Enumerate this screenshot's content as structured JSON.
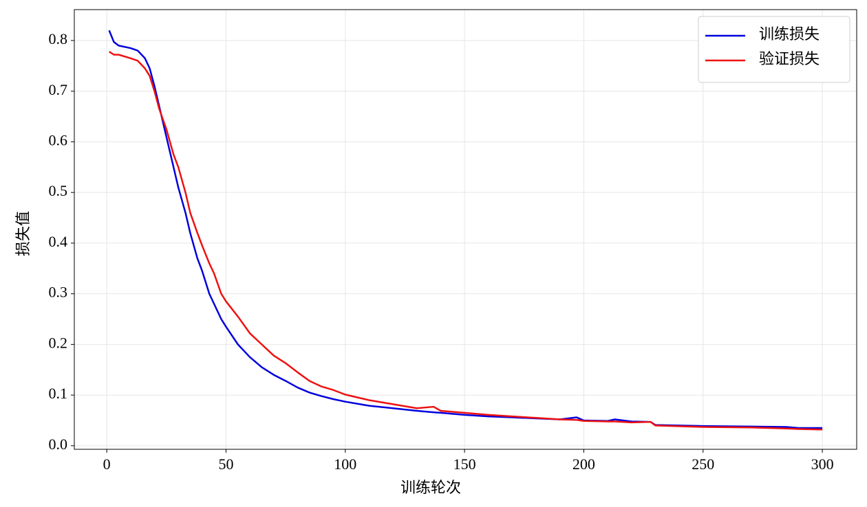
{
  "chart_data": {
    "type": "line",
    "xlabel": "训练轮次",
    "ylabel": "损失值",
    "x": [
      1,
      3,
      5,
      10,
      13,
      16,
      18,
      20,
      22,
      25,
      28,
      30,
      33,
      35,
      38,
      40,
      43,
      45,
      48,
      50,
      55,
      60,
      65,
      70,
      75,
      80,
      85,
      90,
      95,
      100,
      110,
      120,
      130,
      137,
      140,
      150,
      160,
      170,
      180,
      190,
      197,
      200,
      210,
      213,
      220,
      228,
      230,
      250,
      270,
      285,
      290,
      300
    ],
    "series": [
      {
        "name": "训练损失",
        "color": "#0000dd",
        "values": [
          0.82,
          0.797,
          0.79,
          0.785,
          0.78,
          0.765,
          0.745,
          0.71,
          0.67,
          0.61,
          0.55,
          0.51,
          0.46,
          0.42,
          0.37,
          0.345,
          0.3,
          0.28,
          0.25,
          0.235,
          0.2,
          0.175,
          0.155,
          0.14,
          0.128,
          0.115,
          0.105,
          0.098,
          0.092,
          0.087,
          0.079,
          0.074,
          0.069,
          0.066,
          0.065,
          0.061,
          0.058,
          0.056,
          0.054,
          0.052,
          0.056,
          0.05,
          0.049,
          0.052,
          0.048,
          0.047,
          0.041,
          0.039,
          0.038,
          0.037,
          0.035,
          0.035
        ]
      },
      {
        "name": "验证损失",
        "color": "#ee1111",
        "values": [
          0.778,
          0.772,
          0.772,
          0.765,
          0.76,
          0.745,
          0.73,
          0.7,
          0.665,
          0.625,
          0.575,
          0.55,
          0.5,
          0.46,
          0.42,
          0.395,
          0.36,
          0.34,
          0.3,
          0.285,
          0.255,
          0.222,
          0.2,
          0.178,
          0.163,
          0.145,
          0.128,
          0.117,
          0.11,
          0.101,
          0.09,
          0.082,
          0.074,
          0.077,
          0.069,
          0.065,
          0.061,
          0.058,
          0.055,
          0.052,
          0.051,
          0.049,
          0.048,
          0.048,
          0.046,
          0.047,
          0.04,
          0.037,
          0.036,
          0.034,
          0.033,
          0.032
        ]
      }
    ],
    "xlim": [
      -13.6,
      314.4
    ],
    "ylim": [
      -0.007,
      0.861
    ],
    "xticks": [
      0,
      50,
      100,
      150,
      200,
      250,
      300
    ],
    "yticks": [
      {
        "value": 0,
        "label": "0.0"
      },
      0.1,
      0.2,
      0.3,
      0.4,
      0.5,
      0.6,
      0.7,
      0.8
    ],
    "grid": true,
    "legend": "upper right"
  }
}
